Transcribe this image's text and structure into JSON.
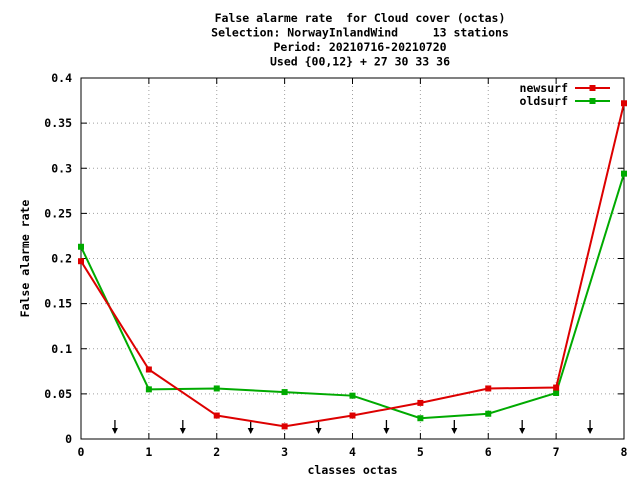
{
  "chart_data": {
    "type": "line",
    "title_lines": [
      "False alarme rate  for Cloud cover (octas)",
      "Selection: NorwayInlandWind     13 stations",
      "Period: 20210716-20210720",
      "Used {00,12} + 27 30 33 36"
    ],
    "xlabel": "classes octas",
    "ylabel": "False alarme rate",
    "xlim": [
      0,
      8
    ],
    "ylim": [
      0,
      0.4
    ],
    "x_ticks": [
      "0",
      "1",
      "2",
      "3",
      "4",
      "5",
      "6",
      "7",
      "8"
    ],
    "y_ticks": [
      "0",
      "0.05",
      "0.1",
      "0.15",
      "0.2",
      "0.25",
      "0.3",
      "0.35",
      "0.4"
    ],
    "grid": true,
    "legend_position": "top-right",
    "x": [
      0,
      1,
      2,
      3,
      4,
      5,
      6,
      7,
      8
    ],
    "series": [
      {
        "name": "newsurf",
        "color": "#dd0000",
        "values": [
          0.197,
          0.077,
          0.026,
          0.014,
          0.026,
          0.04,
          0.056,
          0.057,
          0.372
        ]
      },
      {
        "name": "oldsurf",
        "color": "#00aa00",
        "values": [
          0.213,
          0.055,
          0.056,
          0.052,
          0.048,
          0.023,
          0.028,
          0.051,
          0.294
        ]
      }
    ],
    "arrow_markers_x": [
      0.5,
      1.5,
      2.5,
      3.5,
      4.5,
      5.5,
      6.5,
      7.5
    ]
  }
}
